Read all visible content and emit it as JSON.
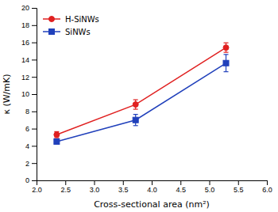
{
  "chart_data": {
    "type": "line",
    "x": [
      2.35,
      3.72,
      5.29
    ],
    "series": [
      {
        "name": "H-SiNWs",
        "color": "#e02020",
        "marker": "circle",
        "values": [
          5.3,
          8.8,
          15.4
        ],
        "errors": [
          0.35,
          0.55,
          0.55
        ]
      },
      {
        "name": "SiNWs",
        "color": "#2040bb",
        "marker": "square",
        "values": [
          4.5,
          7.0,
          13.6
        ],
        "errors": [
          0.25,
          0.65,
          1.0
        ]
      }
    ],
    "x_label": "Cross-sectional area (nm²)",
    "y_label": "κ (W/mK)",
    "xlim": [
      2.0,
      6.0
    ],
    "ylim": [
      0,
      20
    ],
    "xticks": [
      {
        "value": 2,
        "label": "2.0"
      },
      2.5,
      {
        "value": 3,
        "label": "3.0"
      },
      3.5,
      {
        "value": 4,
        "label": "4.0"
      },
      4.5,
      {
        "value": 5,
        "label": "5.0"
      },
      5.5,
      {
        "value": 6,
        "label": "6.0"
      }
    ],
    "yticks": [
      0,
      2,
      4,
      6,
      8,
      10,
      12,
      14,
      16,
      18,
      20
    ],
    "legend": "upper left"
  }
}
